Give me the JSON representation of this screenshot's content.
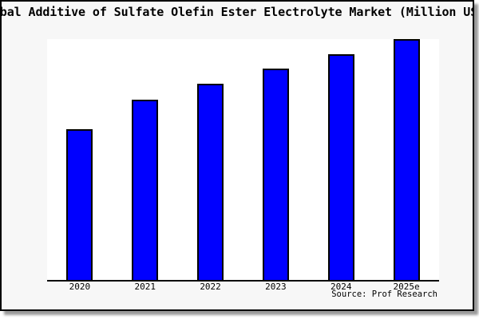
{
  "chart_data": {
    "type": "bar",
    "title": "Global Additive of Sulfate Olefin Ester Electrolyte Market (Million USD)",
    "categories": [
      "2020",
      "2021",
      "2022",
      "2023",
      "2024",
      "2025e"
    ],
    "values_pct_of_max": [
      62.7,
      75.0,
      81.4,
      87.6,
      93.6,
      100
    ],
    "xlabel": "",
    "ylabel": "",
    "y_axis_labels_shown": false,
    "gridlines": false,
    "legend": false,
    "bar_color": "#0000ff",
    "bar_edge_color": "#000000",
    "plot_background": "#ffffff",
    "figure_background": "#f7f7f7",
    "figure_border_color": "#000000",
    "source_note": "Source: Prof Research"
  }
}
